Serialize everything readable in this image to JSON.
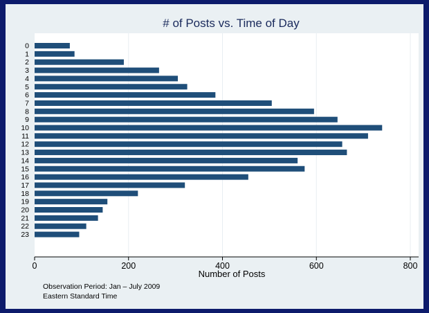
{
  "chart_data": {
    "type": "bar",
    "orientation": "horizontal",
    "title": "# of Posts vs. Time of Day",
    "xlabel": "Number of Posts",
    "ylabel": "",
    "categories": [
      "0",
      "1",
      "2",
      "3",
      "4",
      "5",
      "6",
      "7",
      "8",
      "9",
      "10",
      "11",
      "12",
      "13",
      "14",
      "15",
      "16",
      "17",
      "18",
      "19",
      "20",
      "21",
      "22",
      "23"
    ],
    "values": [
      75,
      85,
      190,
      265,
      305,
      325,
      385,
      505,
      595,
      645,
      740,
      710,
      655,
      665,
      560,
      575,
      455,
      320,
      220,
      155,
      145,
      135,
      110,
      95
    ],
    "xlim": [
      0,
      800
    ],
    "xticks": [
      0,
      200,
      400,
      600,
      800
    ],
    "grid": true,
    "legend": "none",
    "notes": [
      "Observation Period: Jan – July 2009",
      "Eastern Standard Time"
    ],
    "colors": {
      "bar": "#1f4e79",
      "plot_background": "#ffffff",
      "outer_background": "#eaf0f3",
      "border": "#0d1b6b",
      "gridline": "#ffffff"
    }
  }
}
